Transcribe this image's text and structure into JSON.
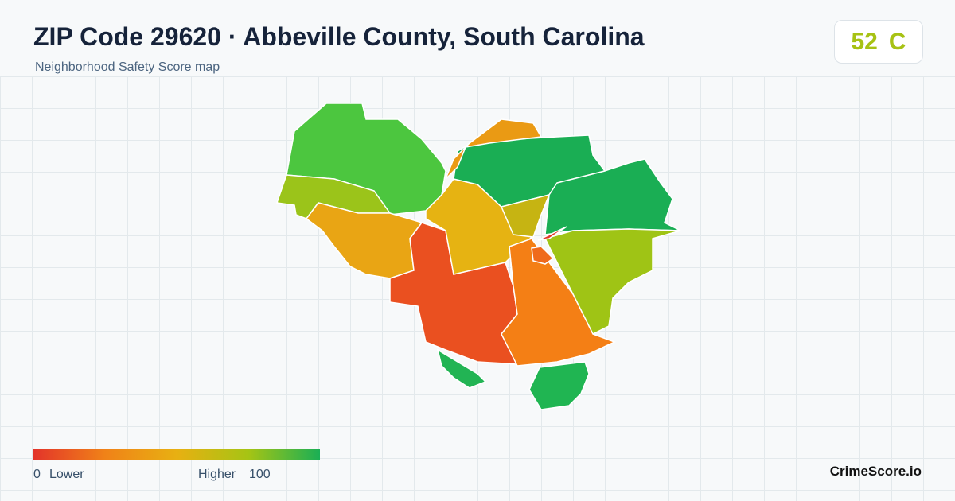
{
  "header": {
    "title": "ZIP Code 29620 · Abbeville County, South Carolina",
    "subtitle": "Neighborhood Safety Score map"
  },
  "score": {
    "value": 52,
    "grade": "C"
  },
  "legend": {
    "min": 0,
    "min_label": "Lower",
    "max_label": "Higher",
    "max": 100
  },
  "brand": "CrimeScore.io"
}
